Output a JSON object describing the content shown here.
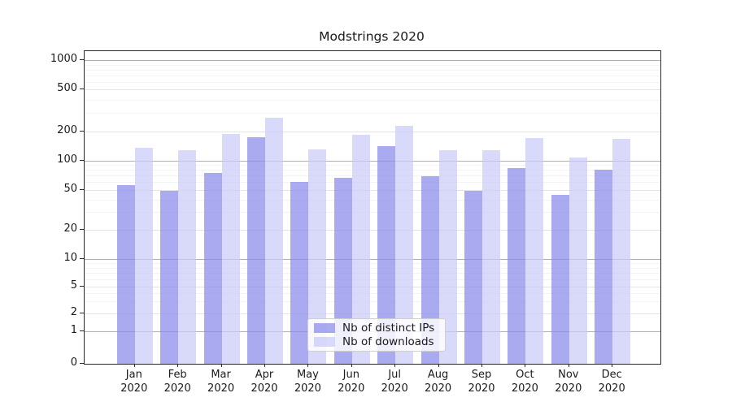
{
  "title": "Modstrings 2020",
  "chart_data": {
    "type": "bar",
    "title": "Modstrings 2020",
    "categories": [
      "Jan",
      "Feb",
      "Mar",
      "Apr",
      "May",
      "Jun",
      "Jul",
      "Aug",
      "Sep",
      "Oct",
      "Nov",
      "Dec"
    ],
    "category_year": "2020",
    "series": [
      {
        "name": "Nb of distinct IPs",
        "color": "#8989ea",
        "values": [
          56,
          49,
          75,
          174,
          60,
          66,
          140,
          69,
          49,
          83,
          44,
          80
        ]
      },
      {
        "name": "Nb of downloads",
        "color": "#cacaf7",
        "values": [
          135,
          129,
          188,
          270,
          130,
          186,
          225,
          128,
          128,
          170,
          108,
          168
        ]
      }
    ],
    "bar_opacity": 0.72,
    "y_ticks": [
      0,
      1,
      2,
      5,
      10,
      20,
      50,
      100,
      200,
      500,
      1000
    ],
    "yscale": "log-like",
    "ylim": [
      0,
      1200
    ],
    "xlabel": "",
    "ylabel": "",
    "grid": true,
    "legend_position": "lower center inside"
  }
}
